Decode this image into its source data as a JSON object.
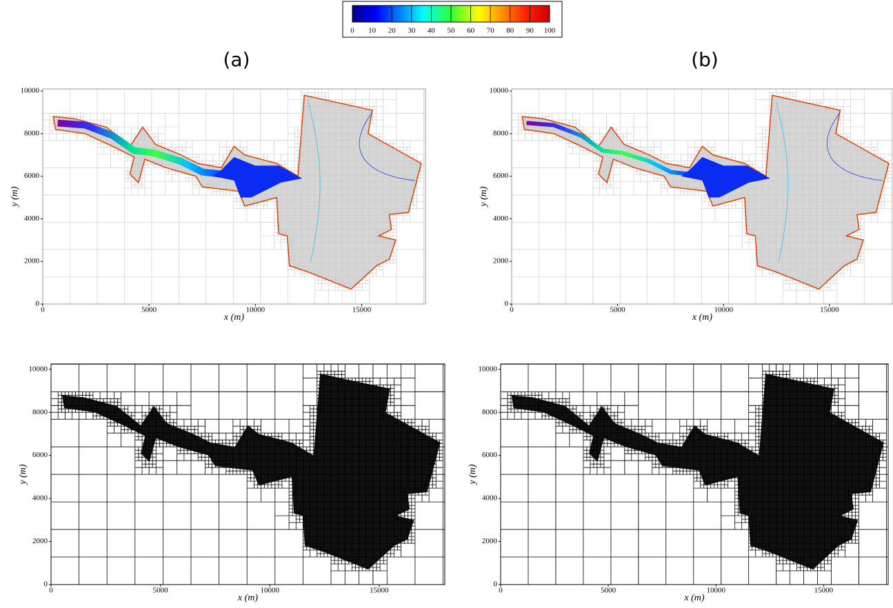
{
  "colorbar": {
    "lim": [
      0,
      100
    ],
    "ticks": [
      0,
      10,
      20,
      30,
      40,
      50,
      60,
      70,
      80,
      90,
      100
    ]
  },
  "panel_labels": [
    "(a)",
    "(b)"
  ],
  "panels": [
    {
      "xlabel": "x (m)",
      "ylabel": "y (m)",
      "xlim": [
        0,
        18000
      ],
      "ylim": [
        0,
        10100
      ],
      "xticks": [
        0,
        5000,
        10000,
        15000
      ],
      "yticks": [
        0,
        2000,
        4000,
        6000,
        8000,
        10000
      ]
    },
    {
      "xlabel": "x (m)",
      "ylabel": "y (m)",
      "xlim": [
        0,
        18000
      ],
      "ylim": [
        0,
        10100
      ],
      "xticks": [
        0,
        5000,
        10000,
        15000
      ],
      "yticks": [
        0,
        2000,
        4000,
        6000,
        8000,
        10000
      ]
    },
    {
      "xlabel": "x (m)",
      "ylabel": "y (m)",
      "xlim": [
        0,
        18000
      ],
      "ylim": [
        0,
        10250
      ],
      "xticks": [
        0,
        5000,
        10000,
        15000
      ],
      "yticks": [
        0,
        2000,
        4000,
        6000,
        8000,
        10000
      ]
    },
    {
      "xlabel": "x (m)",
      "ylabel": "y (m)",
      "xlim": [
        0,
        18000
      ],
      "ylim": [
        0,
        10250
      ],
      "xticks": [
        0,
        5000,
        10000,
        15000
      ],
      "yticks": [
        0,
        2000,
        4000,
        6000,
        8000,
        10000
      ]
    }
  ]
}
